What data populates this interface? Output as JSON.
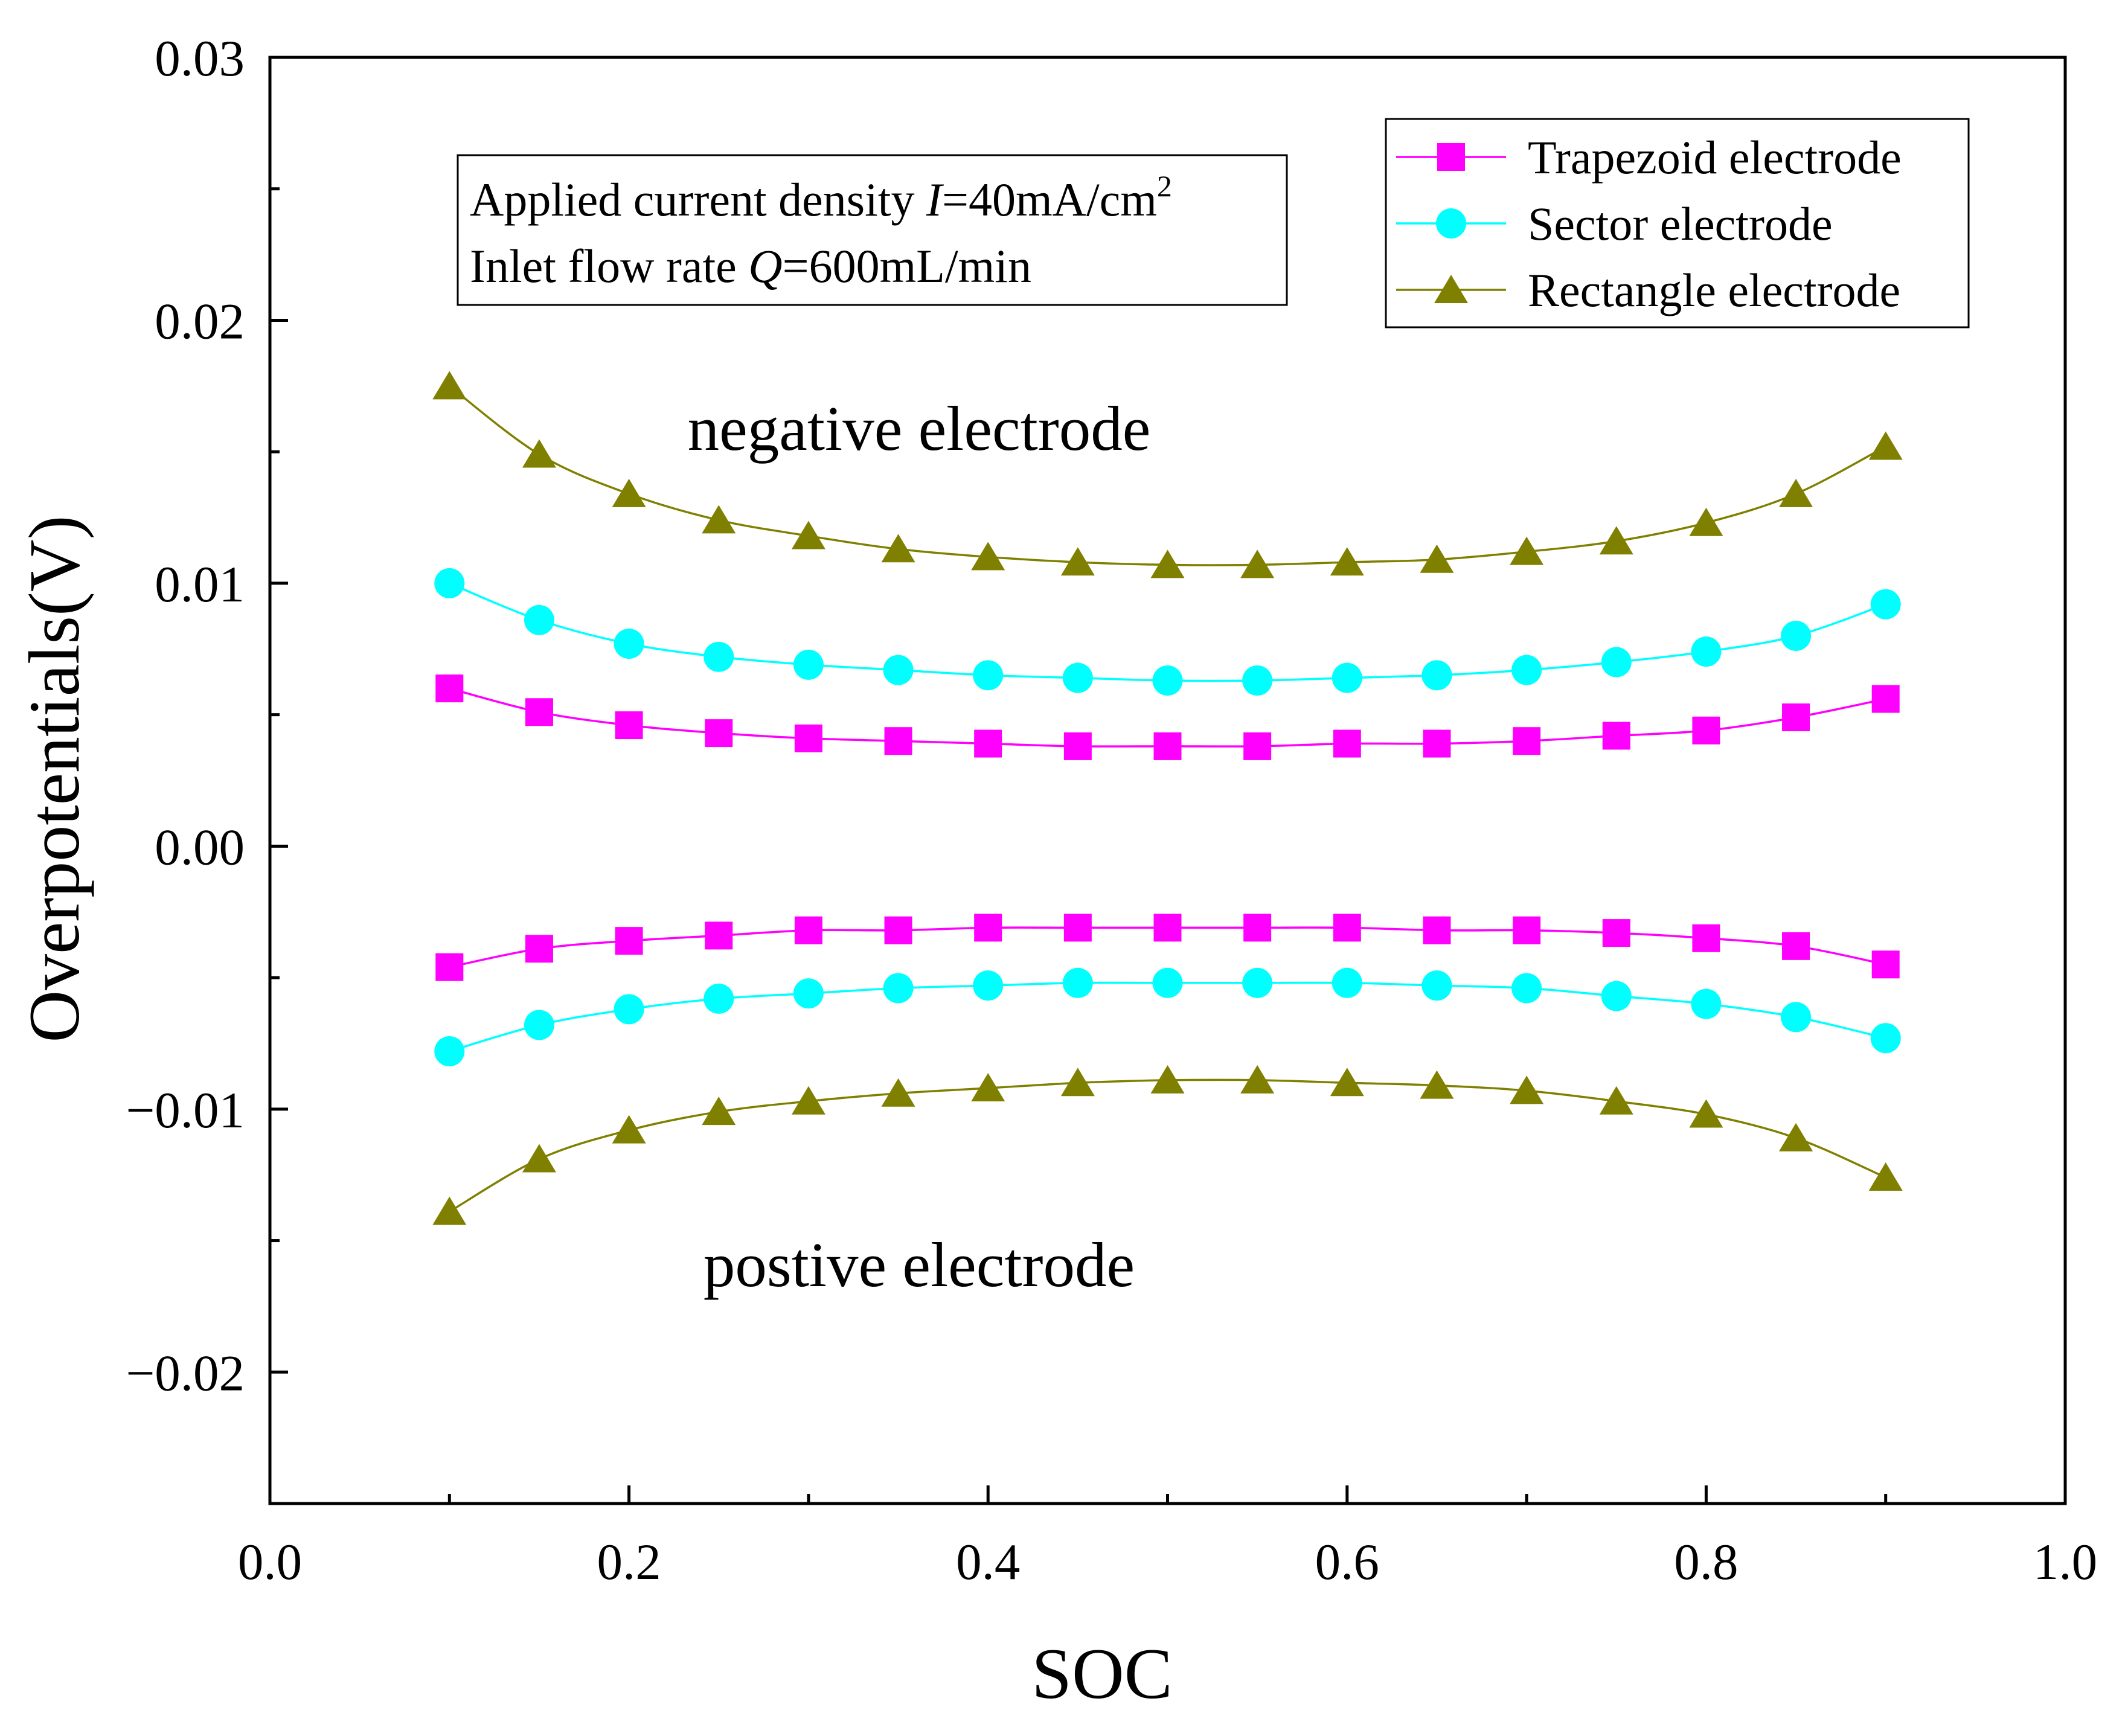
{
  "chart_data": {
    "type": "line",
    "title": "",
    "xlabel": "SOC",
    "ylabel": "Overpotentials(V)",
    "xlim": [
      0.0,
      1.0
    ],
    "ylim": [
      -0.025,
      0.03
    ],
    "x_ticks": [
      0.0,
      0.2,
      0.4,
      0.6,
      0.8,
      1.0
    ],
    "x_tick_labels": [
      "0.0",
      "0.2",
      "0.4",
      "0.6",
      "0.8",
      "1.0"
    ],
    "y_ticks": [
      -0.02,
      -0.01,
      0.0,
      0.01,
      0.02,
      0.03
    ],
    "y_tick_labels": [
      "−0.02",
      "−0.01",
      "0.00",
      "0.01",
      "0.02",
      "0.03"
    ],
    "grid": false,
    "legend_position": "top-right",
    "x": [
      0.1,
      0.15,
      0.2,
      0.25,
      0.3,
      0.35,
      0.4,
      0.45,
      0.5,
      0.55,
      0.6,
      0.65,
      0.7,
      0.75,
      0.8,
      0.85,
      0.9
    ],
    "series": [
      {
        "name": "Trapezoid electrode",
        "color": "#ff00ff",
        "marker": "square",
        "values_negative_electrode": [
          0.006,
          0.0051,
          0.0046,
          0.0043,
          0.0041,
          0.004,
          0.0039,
          0.0038,
          0.0038,
          0.0038,
          0.0039,
          0.0039,
          0.004,
          0.0042,
          0.0044,
          0.0049,
          0.0056
        ],
        "values_positive_electrode": [
          -0.0046,
          -0.0039,
          -0.0036,
          -0.0034,
          -0.0032,
          -0.0032,
          -0.0031,
          -0.0031,
          -0.0031,
          -0.0031,
          -0.0031,
          -0.0032,
          -0.0032,
          -0.0033,
          -0.0035,
          -0.0038,
          -0.0045
        ]
      },
      {
        "name": "Sector electrode",
        "color": "#00ffff",
        "marker": "circle",
        "values_negative_electrode": [
          0.01,
          0.0086,
          0.0077,
          0.0072,
          0.0069,
          0.0067,
          0.0065,
          0.0064,
          0.0063,
          0.0063,
          0.0064,
          0.0065,
          0.0067,
          0.007,
          0.0074,
          0.008,
          0.0092
        ],
        "values_positive_electrode": [
          -0.0078,
          -0.0068,
          -0.0062,
          -0.0058,
          -0.0056,
          -0.0054,
          -0.0053,
          -0.0052,
          -0.0052,
          -0.0052,
          -0.0052,
          -0.0053,
          -0.0054,
          -0.0057,
          -0.006,
          -0.0065,
          -0.0073
        ]
      },
      {
        "name": "Rectangle electrode",
        "color": "#808000",
        "marker": "triangle",
        "values_negative_electrode": [
          0.0175,
          0.0149,
          0.0134,
          0.0124,
          0.0118,
          0.0113,
          0.011,
          0.0108,
          0.0107,
          0.0107,
          0.0108,
          0.0109,
          0.0112,
          0.0116,
          0.0123,
          0.0134,
          0.0152
        ],
        "values_positive_electrode": [
          -0.0139,
          -0.0119,
          -0.0108,
          -0.0101,
          -0.0097,
          -0.0094,
          -0.0092,
          -0.009,
          -0.0089,
          -0.0089,
          -0.009,
          -0.0091,
          -0.0093,
          -0.0097,
          -0.0102,
          -0.0111,
          -0.0126
        ]
      }
    ],
    "annotations": {
      "conditions_line1_prefix": "Applied current density ",
      "conditions_line1_var": "I",
      "conditions_line1_value": "=40mA/cm",
      "conditions_line1_sup": "2",
      "conditions_line2_prefix": "Inlet flow rate ",
      "conditions_line2_var": "Q",
      "conditions_line2_value": "=600mL/min",
      "negative_label": "negative electrode",
      "positive_label": "postive electrode"
    }
  }
}
